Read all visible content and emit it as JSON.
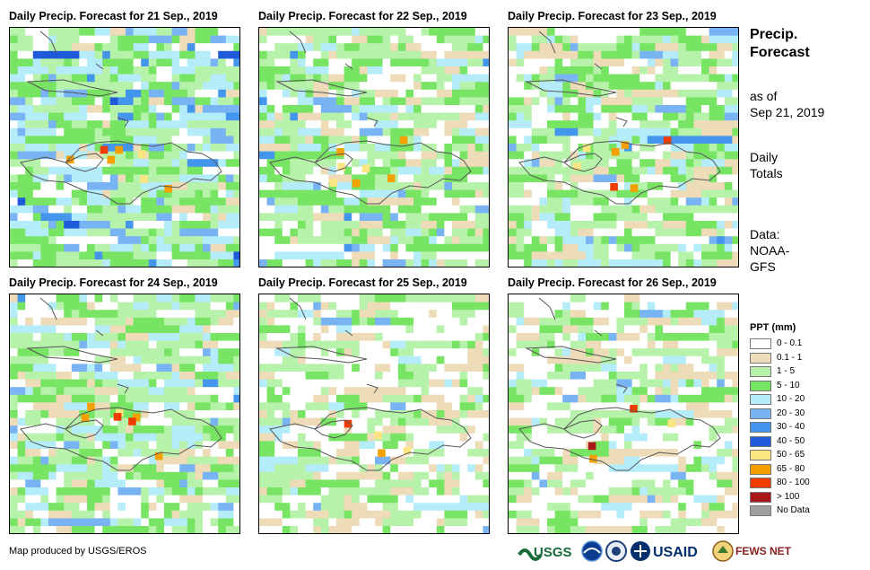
{
  "panels": [
    {
      "title": "Daily Precip. Forecast for 21 Sep., 2019",
      "seed": 11,
      "base": "wet"
    },
    {
      "title": "Daily Precip. Forecast for 22 Sep., 2019",
      "seed": 23,
      "base": "moderate"
    },
    {
      "title": "Daily Precip. Forecast for 23 Sep., 2019",
      "seed": 37,
      "base": "moderate"
    },
    {
      "title": "Daily Precip. Forecast for 24 Sep., 2019",
      "seed": 41,
      "base": "moderate"
    },
    {
      "title": "Daily Precip. Forecast for 25 Sep., 2019",
      "seed": 53,
      "base": "dry"
    },
    {
      "title": "Daily Precip. Forecast for 26 Sep., 2019",
      "seed": 67,
      "base": "dry"
    }
  ],
  "sidebar": {
    "title_line1": "Precip.",
    "title_line2": "Forecast",
    "asof_line1": "as of",
    "asof_line2": "Sep 21, 2019",
    "totals_line1": "Daily",
    "totals_line2": "Totals",
    "data_line1": "Data:",
    "data_line2": "NOAA-",
    "data_line3": "GFS"
  },
  "legend": {
    "title": "PPT (mm)",
    "items": [
      {
        "label": "0 - 0.1",
        "color": "#ffffff"
      },
      {
        "label": "0.1 - 1",
        "color": "#eedcb9"
      },
      {
        "label": "1 - 5",
        "color": "#b6f2aa"
      },
      {
        "label": "5 - 10",
        "color": "#78e464"
      },
      {
        "label": "10 - 20",
        "color": "#b4ecfa"
      },
      {
        "label": "20 - 30",
        "color": "#78b4f4"
      },
      {
        "label": "30 - 40",
        "color": "#4496ec"
      },
      {
        "label": "40 - 50",
        "color": "#1e5ada"
      },
      {
        "label": "50 - 65",
        "color": "#fce682"
      },
      {
        "label": "65 - 80",
        "color": "#f6a000"
      },
      {
        "label": "80 - 100",
        "color": "#f03c00"
      },
      {
        "label": "> 100",
        "color": "#a81818"
      },
      {
        "label": "No Data",
        "color": "#a0a0a0"
      }
    ]
  },
  "footer": {
    "credit": "Map produced by USGS/EROS",
    "logos": [
      "USGS",
      "NOAA",
      "USAID",
      "FEWS NET"
    ]
  }
}
